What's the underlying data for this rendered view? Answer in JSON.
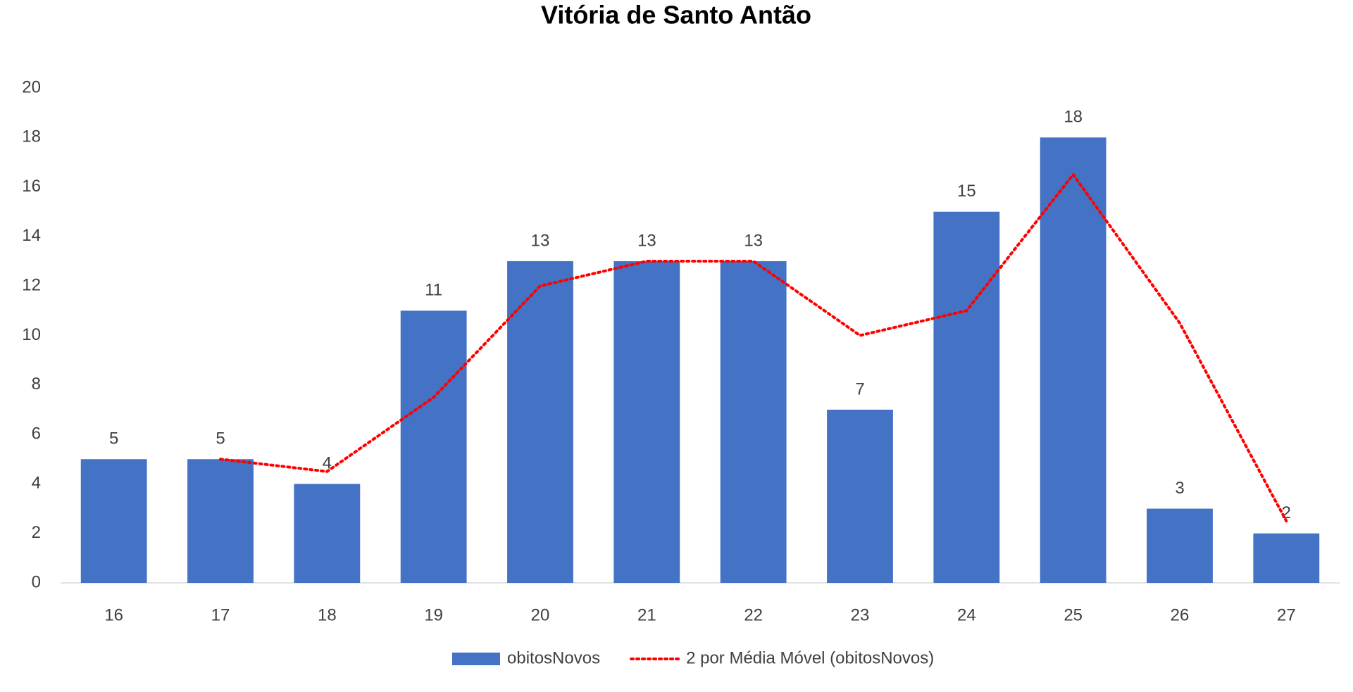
{
  "chart_data": {
    "type": "bar",
    "title": "Vitória de Santo Antão",
    "categories": [
      "16",
      "17",
      "18",
      "19",
      "20",
      "21",
      "22",
      "23",
      "24",
      "25",
      "26",
      "27"
    ],
    "series": [
      {
        "name": "obitosNovos",
        "type": "bar",
        "color": "#4472c4",
        "values": [
          5,
          5,
          4,
          11,
          13,
          13,
          13,
          7,
          15,
          18,
          3,
          2
        ]
      },
      {
        "name": "2 por Média Móvel (obitosNovos)",
        "type": "line",
        "color": "#ff0000",
        "values": [
          null,
          5,
          4.5,
          7.5,
          12,
          13,
          13,
          10,
          11,
          16.5,
          10.5,
          2.5
        ]
      }
    ],
    "ylim": [
      0,
      20
    ],
    "yticks": [
      0,
      2,
      4,
      6,
      8,
      10,
      12,
      14,
      16,
      18,
      20
    ],
    "grid": false,
    "legend": "bottom"
  }
}
